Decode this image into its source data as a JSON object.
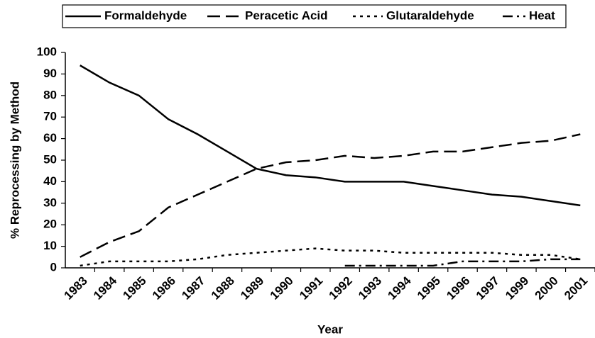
{
  "chart_data": {
    "type": "line",
    "xlabel": "Year",
    "ylabel": "% Reprocessing by Method",
    "categories": [
      "1983",
      "1984",
      "1985",
      "1986",
      "1987",
      "1988",
      "1989",
      "1990",
      "1991",
      "1992",
      "1993",
      "1994",
      "1995",
      "1996",
      "1997",
      "1999",
      "2000",
      "2001"
    ],
    "series": [
      {
        "name": "Formaldehyde",
        "color": "#000000",
        "line_style": "solid",
        "values": [
          94,
          86,
          80,
          69,
          62,
          54,
          46,
          43,
          42,
          40,
          40,
          40,
          38,
          36,
          34,
          33,
          31,
          29
        ]
      },
      {
        "name": "Peracetic Acid",
        "color": "#000000",
        "line_style": "long-dash",
        "values": [
          5,
          12,
          17,
          28,
          34,
          40,
          46,
          49,
          50,
          52,
          51,
          52,
          54,
          54,
          56,
          58,
          59,
          62
        ]
      },
      {
        "name": "Glutaraldehyde",
        "color": "#000000",
        "line_style": "dotted",
        "values": [
          1,
          3,
          3,
          3,
          4,
          6,
          7,
          8,
          9,
          8,
          8,
          7,
          7,
          7,
          7,
          6,
          6,
          4
        ]
      },
      {
        "name": "Heat",
        "color": "#000000",
        "line_style": "dash-dot",
        "values": [
          null,
          null,
          null,
          null,
          null,
          null,
          null,
          null,
          null,
          1,
          1,
          1,
          1,
          3,
          3,
          3,
          4,
          4
        ]
      }
    ],
    "ylim": [
      0,
      100
    ],
    "yticks": [
      0,
      10,
      20,
      30,
      40,
      50,
      60,
      70,
      80,
      90,
      100
    ],
    "grid": false,
    "legend": "top"
  }
}
